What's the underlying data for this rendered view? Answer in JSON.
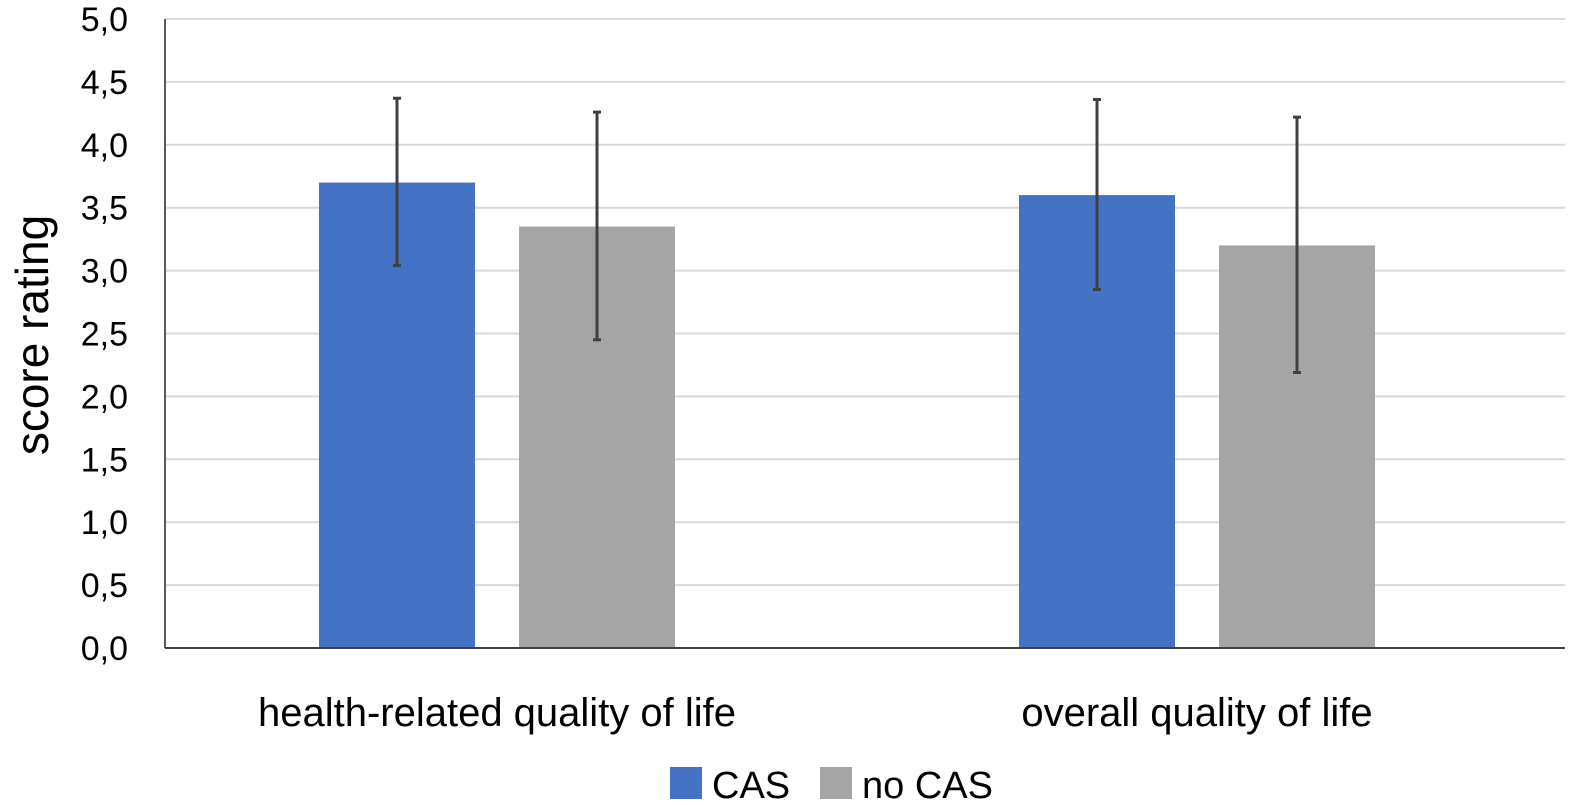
{
  "chart_data": {
    "type": "bar",
    "title": "",
    "xlabel": "",
    "ylabel": "score rating",
    "ylim": [
      0,
      5
    ],
    "ytick_step": 0.5,
    "ytick_labels": [
      "0,0",
      "0,5",
      "1,0",
      "1,5",
      "2,0",
      "2,5",
      "3,0",
      "3,5",
      "4,0",
      "4,5",
      "5,0"
    ],
    "grid": true,
    "legend_position": "bottom",
    "categories": [
      "health-related quality of life",
      "overall quality of life"
    ],
    "series": [
      {
        "name": "CAS",
        "color": "#4472C4",
        "values": [
          3.7,
          3.6
        ],
        "error_low": [
          3.04,
          2.85
        ],
        "error_high": [
          4.37,
          4.36
        ]
      },
      {
        "name": "no CAS",
        "color": "#A5A5A5",
        "values": [
          3.35,
          3.2
        ],
        "error_low": [
          2.45,
          2.19
        ],
        "error_high": [
          4.26,
          4.22
        ]
      }
    ]
  }
}
